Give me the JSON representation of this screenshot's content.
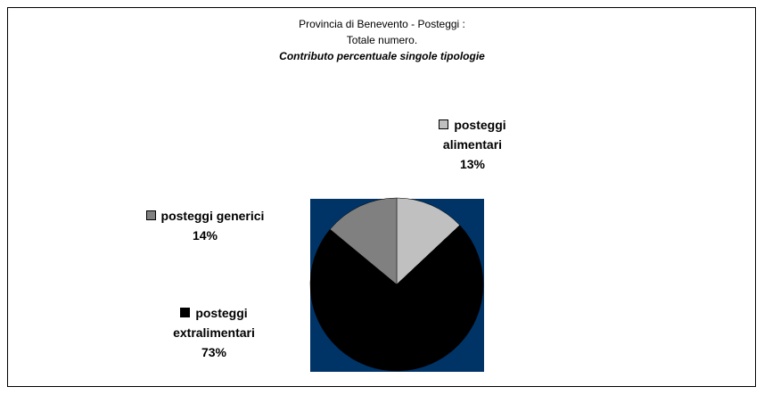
{
  "chart_data": {
    "type": "pie",
    "title": [
      "Provincia di Benevento - Posteggi :",
      "Totale numero."
    ],
    "subtitle": "Contributo percentuale singole tipologie",
    "categories": [
      "posteggi alimentari",
      "posteggi extralimentari",
      "posteggi generici"
    ],
    "values": [
      13,
      73,
      14
    ],
    "value_labels": [
      "13%",
      "73%",
      "14%"
    ],
    "colors": [
      "#c0c0c0",
      "#000000",
      "#808080"
    ],
    "background": "#003366"
  }
}
